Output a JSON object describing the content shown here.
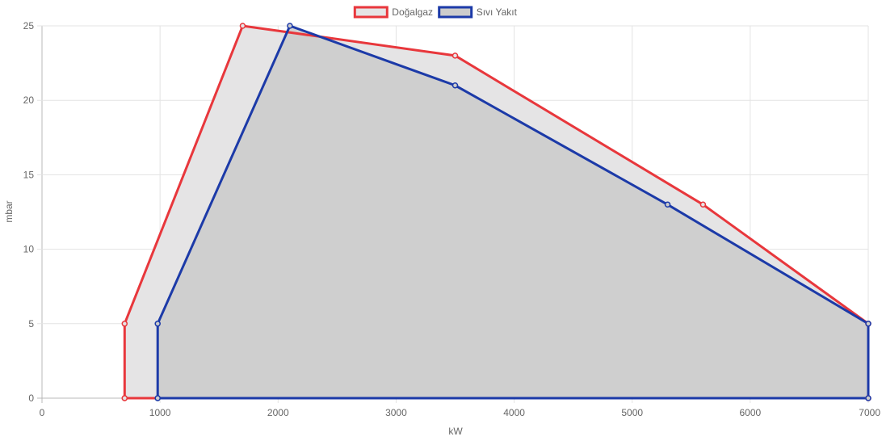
{
  "chart_data": {
    "type": "area",
    "title": "",
    "xlabel": "kW",
    "ylabel": "mbar",
    "xlim": [
      0,
      7000
    ],
    "ylim": [
      0,
      25
    ],
    "x_ticks": [
      0,
      1000,
      2000,
      3000,
      4000,
      5000,
      6000,
      7000
    ],
    "y_ticks": [
      0,
      5,
      10,
      15,
      20,
      25
    ],
    "grid": true,
    "legend_position": "top",
    "series": [
      {
        "name": "Doğalgaz",
        "color": "#e8373c",
        "fill": "#e5e4e5",
        "points": [
          [
            700,
            0
          ],
          [
            700,
            5
          ],
          [
            1700,
            25
          ],
          [
            3500,
            23
          ],
          [
            5600,
            13
          ],
          [
            7000,
            5
          ],
          [
            7000,
            0
          ],
          [
            700,
            0
          ]
        ]
      },
      {
        "name": "Sıvı Yakıt",
        "color": "#1c3aa8",
        "fill": "#cccccc",
        "points": [
          [
            980,
            0
          ],
          [
            980,
            5
          ],
          [
            2100,
            25
          ],
          [
            3500,
            21
          ],
          [
            5300,
            13
          ],
          [
            7000,
            5
          ],
          [
            7000,
            0
          ],
          [
            980,
            0
          ]
        ]
      }
    ]
  }
}
